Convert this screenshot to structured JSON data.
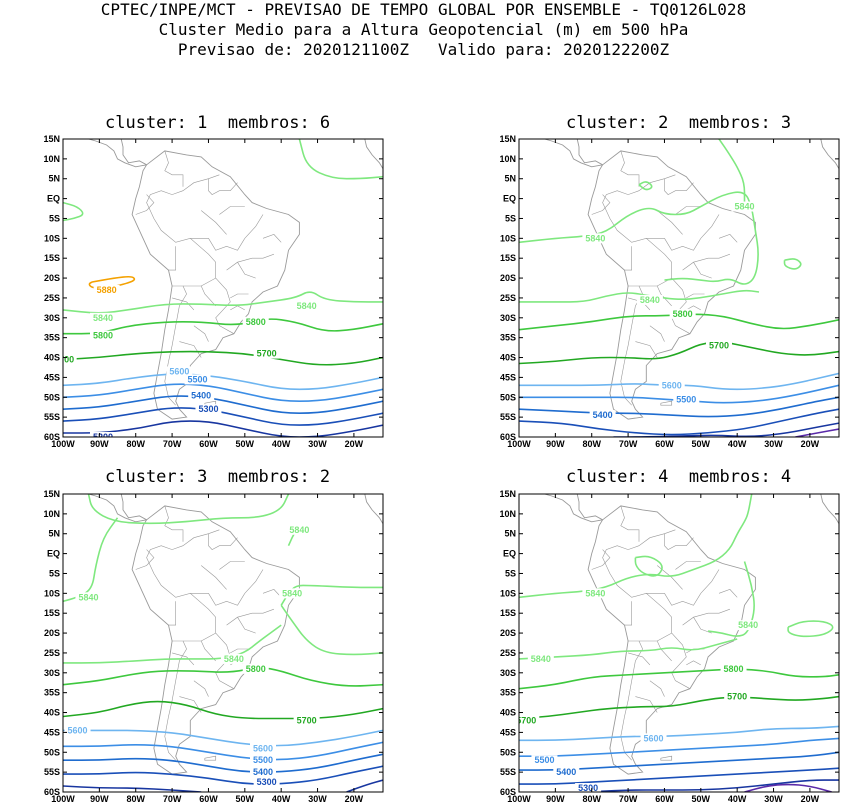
{
  "header": {
    "line1": "CPTEC/INPE/MCT - PREVISAO DE TEMPO GLOBAL POR ENSEMBLE - TQ0126L028",
    "line2": "Cluster Medio para a Altura Geopotencial (m) em 500 hPa",
    "line3": "Previsao de: 2020121100Z   Valido para: 2020122200Z"
  },
  "colors": {
    "c5880": "#f4a100",
    "c5840": "#7fe87f",
    "c5800": "#3ec83e",
    "c5700": "#22a822",
    "c5600": "#6eb5f0",
    "c5500": "#3c8ee6",
    "c5400": "#1f6ccf",
    "c5300": "#1a4fb8",
    "c5200": "#1836a0",
    "c5100": "#5a2aa8",
    "coast": "#9a9a9a"
  },
  "chart_data": [
    {
      "type": "contour",
      "title": "cluster: 1  membros: 6",
      "lat_ticks": [
        "15N",
        "10N",
        "5N",
        "EQ",
        "5S",
        "10S",
        "15S",
        "20S",
        "25S",
        "30S",
        "35S",
        "40S",
        "45S",
        "50S",
        "55S",
        "60S"
      ],
      "lon_ticks": [
        "100W",
        "90W",
        "80W",
        "70W",
        "60W",
        "50W",
        "40W",
        "30W",
        "20W"
      ],
      "lon_range": [
        -100,
        -12
      ],
      "lat_range": [
        -60,
        15
      ],
      "labels": [
        {
          "text": "5880",
          "lon": -88,
          "lat": -23,
          "level": 5880
        },
        {
          "text": "5840",
          "lon": -89,
          "lat": -30,
          "level": 5840
        },
        {
          "text": "5840",
          "lon": -33,
          "lat": -27,
          "level": 5840
        },
        {
          "text": "5800",
          "lon": -89,
          "lat": -34.5,
          "level": 5800
        },
        {
          "text": "5800",
          "lon": -47,
          "lat": -31,
          "level": 5800
        },
        {
          "text": "700",
          "lon": -99,
          "lat": -40.5,
          "level": 5700
        },
        {
          "text": "5700",
          "lon": -44,
          "lat": -39,
          "level": 5700
        },
        {
          "text": "5600",
          "lon": -68,
          "lat": -43.5,
          "level": 5600
        },
        {
          "text": "5500",
          "lon": -63,
          "lat": -45.5,
          "level": 5500
        },
        {
          "text": "5400",
          "lon": -62,
          "lat": -49.5,
          "level": 5400
        },
        {
          "text": "5300",
          "lon": -60,
          "lat": -53,
          "level": 5300
        },
        {
          "text": "5200",
          "lon": -89,
          "lat": -60,
          "level": 5200
        }
      ]
    },
    {
      "type": "contour",
      "title": "cluster: 2  membros: 3",
      "lat_ticks": [
        "15N",
        "10N",
        "5N",
        "EQ",
        "5S",
        "10S",
        "15S",
        "20S",
        "25S",
        "30S",
        "35S",
        "40S",
        "45S",
        "50S",
        "55S",
        "60S"
      ],
      "lon_ticks": [
        "100W",
        "90W",
        "80W",
        "70W",
        "60W",
        "50W",
        "40W",
        "30W",
        "20W"
      ],
      "lon_range": [
        -100,
        -12
      ],
      "lat_range": [
        -60,
        15
      ],
      "labels": [
        {
          "text": "5840",
          "lon": -38,
          "lat": -2,
          "level": 5840
        },
        {
          "text": "5840",
          "lon": -79,
          "lat": -10,
          "level": 5840
        },
        {
          "text": "5840",
          "lon": -64,
          "lat": -25.5,
          "level": 5840
        },
        {
          "text": "5800",
          "lon": -55,
          "lat": -29,
          "level": 5800
        },
        {
          "text": "5700",
          "lon": -45,
          "lat": -37,
          "level": 5700
        },
        {
          "text": "5600",
          "lon": -58,
          "lat": -47,
          "level": 5600
        },
        {
          "text": "5500",
          "lon": -54,
          "lat": -50.5,
          "level": 5500
        },
        {
          "text": "5400",
          "lon": -77,
          "lat": -54.5,
          "level": 5400
        }
      ]
    },
    {
      "type": "contour",
      "title": "cluster: 3  membros: 2",
      "lat_ticks": [
        "15N",
        "10N",
        "5N",
        "EQ",
        "5S",
        "10S",
        "15S",
        "20S",
        "25S",
        "30S",
        "35S",
        "40S",
        "45S",
        "50S",
        "55S",
        "60S"
      ],
      "lon_ticks": [
        "100W",
        "90W",
        "80W",
        "70W",
        "60W",
        "50W",
        "40W",
        "30W",
        "20W"
      ],
      "lon_range": [
        -100,
        -12
      ],
      "lat_range": [
        -60,
        15
      ],
      "labels": [
        {
          "text": "5840",
          "lon": -35,
          "lat": 6,
          "level": 5840
        },
        {
          "text": "5840",
          "lon": -93,
          "lat": -11,
          "level": 5840
        },
        {
          "text": "5840",
          "lon": -37,
          "lat": -10,
          "level": 5840
        },
        {
          "text": "5840",
          "lon": -53,
          "lat": -26.5,
          "level": 5840
        },
        {
          "text": "5800",
          "lon": -47,
          "lat": -29,
          "level": 5800
        },
        {
          "text": "5700",
          "lon": -33,
          "lat": -42,
          "level": 5700
        },
        {
          "text": "5600",
          "lon": -96,
          "lat": -44.5,
          "level": 5600
        },
        {
          "text": "5600",
          "lon": -45,
          "lat": -49,
          "level": 5600
        },
        {
          "text": "5500",
          "lon": -45,
          "lat": -52,
          "level": 5500
        },
        {
          "text": "5400",
          "lon": -45,
          "lat": -55,
          "level": 5400
        },
        {
          "text": "5300",
          "lon": -44,
          "lat": -57.5,
          "level": 5300
        }
      ]
    },
    {
      "type": "contour",
      "title": "cluster: 4  membros: 4",
      "lat_ticks": [
        "15N",
        "10N",
        "5N",
        "EQ",
        "5S",
        "10S",
        "15S",
        "20S",
        "25S",
        "30S",
        "35S",
        "40S",
        "45S",
        "50S",
        "55S",
        "60S"
      ],
      "lon_ticks": [
        "100W",
        "90W",
        "80W",
        "70W",
        "60W",
        "50W",
        "40W",
        "30W",
        "20W"
      ],
      "lon_range": [
        -100,
        -12
      ],
      "lat_range": [
        -60,
        15
      ],
      "labels": [
        {
          "text": "5840",
          "lon": -79,
          "lat": -10,
          "level": 5840
        },
        {
          "text": "5840",
          "lon": -37,
          "lat": -18,
          "level": 5840
        },
        {
          "text": "5840",
          "lon": -94,
          "lat": -26.5,
          "level": 5840
        },
        {
          "text": "5800",
          "lon": -41,
          "lat": -29,
          "level": 5800
        },
        {
          "text": "5700",
          "lon": -40,
          "lat": -36,
          "level": 5700
        },
        {
          "text": "5700",
          "lon": -98,
          "lat": -42,
          "level": 5700
        },
        {
          "text": "5600",
          "lon": -63,
          "lat": -46.5,
          "level": 5600
        },
        {
          "text": "5500",
          "lon": -93,
          "lat": -52,
          "level": 5500
        },
        {
          "text": "5400",
          "lon": -87,
          "lat": -55,
          "level": 5400
        },
        {
          "text": "5300",
          "lon": -81,
          "lat": -59,
          "level": 5300
        }
      ]
    }
  ]
}
